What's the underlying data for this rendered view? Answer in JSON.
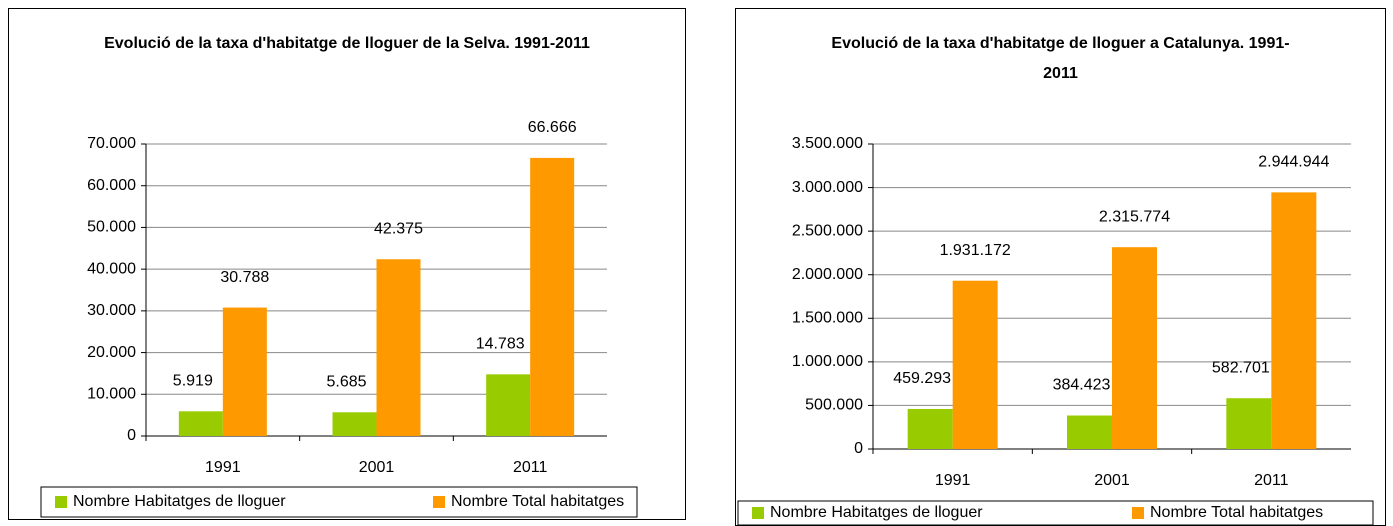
{
  "chart_data": [
    {
      "type": "bar",
      "title": "Evolució de la taxa d'habitatge de lloguer de la Selva. 1991-2011",
      "categories": [
        "1991",
        "2001",
        "2011"
      ],
      "series": [
        {
          "name": "Nombre Habitatges de lloguer",
          "color": "#99cc00",
          "values": [
            5919,
            5685,
            14783
          ],
          "value_labels": [
            "5.919",
            "5.685",
            "14.783"
          ]
        },
        {
          "name": "Nombre Total habitatges",
          "color": "#ff9900",
          "values": [
            30788,
            42375,
            66666
          ],
          "value_labels": [
            "30.788",
            "42.375",
            "66.666"
          ]
        }
      ],
      "ylim": [
        0,
        70000
      ],
      "yticks": [
        {
          "value": 0,
          "label": "0"
        },
        {
          "value": 10000,
          "label": "10.000"
        },
        {
          "value": 20000,
          "label": "20.000"
        },
        {
          "value": 30000,
          "label": "30.000"
        },
        {
          "value": 40000,
          "label": "40.000"
        },
        {
          "value": 50000,
          "label": "50.000"
        },
        {
          "value": 60000,
          "label": "60.000"
        },
        {
          "value": 70000,
          "label": "70.000"
        }
      ],
      "grid": true,
      "legend": "bottom"
    },
    {
      "type": "bar",
      "title": "Evolució de la taxa d'habitatge de lloguer a Catalunya. 1991-2011",
      "categories": [
        "1991",
        "2001",
        "2011"
      ],
      "series": [
        {
          "name": "Nombre Habitatges de lloguer",
          "color": "#99cc00",
          "values": [
            459293,
            384423,
            582701
          ],
          "value_labels": [
            "459.293",
            "384.423",
            "582.701"
          ]
        },
        {
          "name": "Nombre Total habitatges",
          "color": "#ff9900",
          "values": [
            1931172,
            2315774,
            2944944
          ],
          "value_labels": [
            "1.931.172",
            "2.315.774",
            "2.944.944"
          ]
        }
      ],
      "ylim": [
        0,
        3500000
      ],
      "yticks": [
        {
          "value": 0,
          "label": "0"
        },
        {
          "value": 500000,
          "label": "500.000"
        },
        {
          "value": 1000000,
          "label": "1.000.000"
        },
        {
          "value": 1500000,
          "label": "1.500.000"
        },
        {
          "value": 2000000,
          "label": "2.000.000"
        },
        {
          "value": 2500000,
          "label": "2.500.000"
        },
        {
          "value": 3000000,
          "label": "3.000.000"
        },
        {
          "value": 3500000,
          "label": "3.500.000"
        }
      ],
      "grid": true,
      "legend": "bottom"
    }
  ]
}
